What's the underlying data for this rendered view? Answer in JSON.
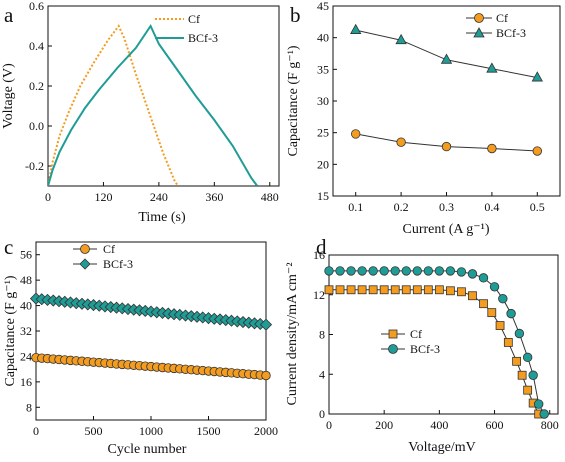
{
  "colors": {
    "cf_orange": "#f39c1f",
    "bcf_teal": "#1f9c96",
    "marker_edge": "#333333",
    "line_gray": "#444444"
  },
  "chart_data": [
    {
      "panel": "a",
      "type": "line",
      "xlabel": "Time (s)",
      "ylabel": "Voltage (V)",
      "xlim": [
        0,
        500
      ],
      "ylim": [
        -0.3,
        0.6
      ],
      "xticks": [
        0,
        120,
        240,
        360,
        480
      ],
      "yticks": [
        -0.2,
        0.0,
        0.2,
        0.4,
        0.6
      ],
      "legend": "top-right",
      "series": [
        {
          "name": "Cf",
          "style": "dotted",
          "color": "#f39c1f",
          "x": [
            0,
            10,
            25,
            45,
            70,
            100,
            130,
            153,
            165,
            190,
            220,
            250,
            275,
            282
          ],
          "y": [
            -0.3,
            -0.18,
            -0.05,
            0.07,
            0.2,
            0.32,
            0.43,
            0.5,
            0.44,
            0.26,
            0.06,
            -0.14,
            -0.28,
            -0.3
          ]
        },
        {
          "name": "BCf-3",
          "style": "solid",
          "color": "#1f9c96",
          "x": [
            0,
            10,
            25,
            50,
            80,
            110,
            150,
            190,
            222,
            240,
            280,
            320,
            360,
            400,
            440,
            453
          ],
          "y": [
            -0.3,
            -0.22,
            -0.13,
            -0.02,
            0.09,
            0.18,
            0.29,
            0.39,
            0.5,
            0.41,
            0.28,
            0.15,
            0.03,
            -0.1,
            -0.26,
            -0.3
          ]
        }
      ]
    },
    {
      "panel": "b",
      "type": "line",
      "xlabel": "Current (A g⁻¹)",
      "ylabel": "Capacitance (F g⁻¹)",
      "xlim": [
        0.05,
        0.55
      ],
      "ylim": [
        15,
        45
      ],
      "xticks": [
        0.1,
        0.2,
        0.3,
        0.4,
        0.5
      ],
      "yticks": [
        15,
        20,
        25,
        30,
        35,
        40,
        45
      ],
      "legend": "top-right",
      "x": [
        0.1,
        0.2,
        0.3,
        0.4,
        0.5
      ],
      "series": [
        {
          "name": "Cf",
          "marker": "circle",
          "color": "#f39c1f",
          "values": [
            24.8,
            23.5,
            22.8,
            22.5,
            22.1
          ]
        },
        {
          "name": "BCf-3",
          "marker": "triangle",
          "color": "#1f9c96",
          "values": [
            41.2,
            39.6,
            36.5,
            35.1,
            33.7
          ]
        }
      ]
    },
    {
      "panel": "c",
      "type": "scatter",
      "xlabel": "Cycle number",
      "ylabel": "Capacitance (F g⁻¹)",
      "xlim": [
        0,
        2000
      ],
      "ylim": [
        4,
        60
      ],
      "xticks": [
        0,
        500,
        1000,
        1500,
        2000
      ],
      "yticks": [
        8,
        16,
        24,
        32,
        40,
        48,
        56
      ],
      "legend": "top-center",
      "series": [
        {
          "name": "Cf",
          "marker": "circle",
          "color": "#f39c1f",
          "x_start": 0,
          "x_end": 2000,
          "x_step": 50,
          "y_start": 23.6,
          "y_end": 18.0
        },
        {
          "name": "BCf-3",
          "marker": "diamond",
          "color": "#1f9c96",
          "x_start": 0,
          "x_end": 2000,
          "x_step": 50,
          "y_start": 42.2,
          "y_end": 34.0
        }
      ]
    },
    {
      "panel": "d",
      "type": "line",
      "xlabel": "Voltage/mV",
      "ylabel": "Current density/mA cm⁻²",
      "xlim": [
        0,
        830
      ],
      "ylim": [
        0,
        16
      ],
      "xticks": [
        0,
        200,
        400,
        600,
        800
      ],
      "yticks": [
        0,
        4,
        8,
        12,
        16
      ],
      "legend": "center-left",
      "series": [
        {
          "name": "Cf",
          "marker": "square",
          "color": "#f39c1f",
          "x": [
            0,
            40,
            80,
            120,
            160,
            200,
            240,
            280,
            320,
            360,
            400,
            440,
            480,
            520,
            560,
            590,
            620,
            650,
            680,
            700,
            720,
            740,
            760
          ],
          "y": [
            12.5,
            12.5,
            12.5,
            12.5,
            12.5,
            12.5,
            12.5,
            12.5,
            12.5,
            12.5,
            12.5,
            12.4,
            12.3,
            11.9,
            11.1,
            10.2,
            8.9,
            7.2,
            5.3,
            3.9,
            2.4,
            1.1,
            0.0
          ]
        },
        {
          "name": "BCf-3",
          "marker": "circle",
          "color": "#1f9c96",
          "x": [
            0,
            40,
            80,
            120,
            160,
            200,
            240,
            280,
            320,
            360,
            400,
            440,
            480,
            520,
            560,
            600,
            630,
            660,
            690,
            720,
            740,
            760,
            780
          ],
          "y": [
            14.4,
            14.4,
            14.4,
            14.4,
            14.4,
            14.4,
            14.4,
            14.4,
            14.4,
            14.4,
            14.4,
            14.4,
            14.3,
            14.1,
            13.7,
            12.8,
            11.6,
            10.1,
            8.1,
            5.7,
            3.9,
            1.0,
            0.0
          ]
        }
      ]
    }
  ]
}
